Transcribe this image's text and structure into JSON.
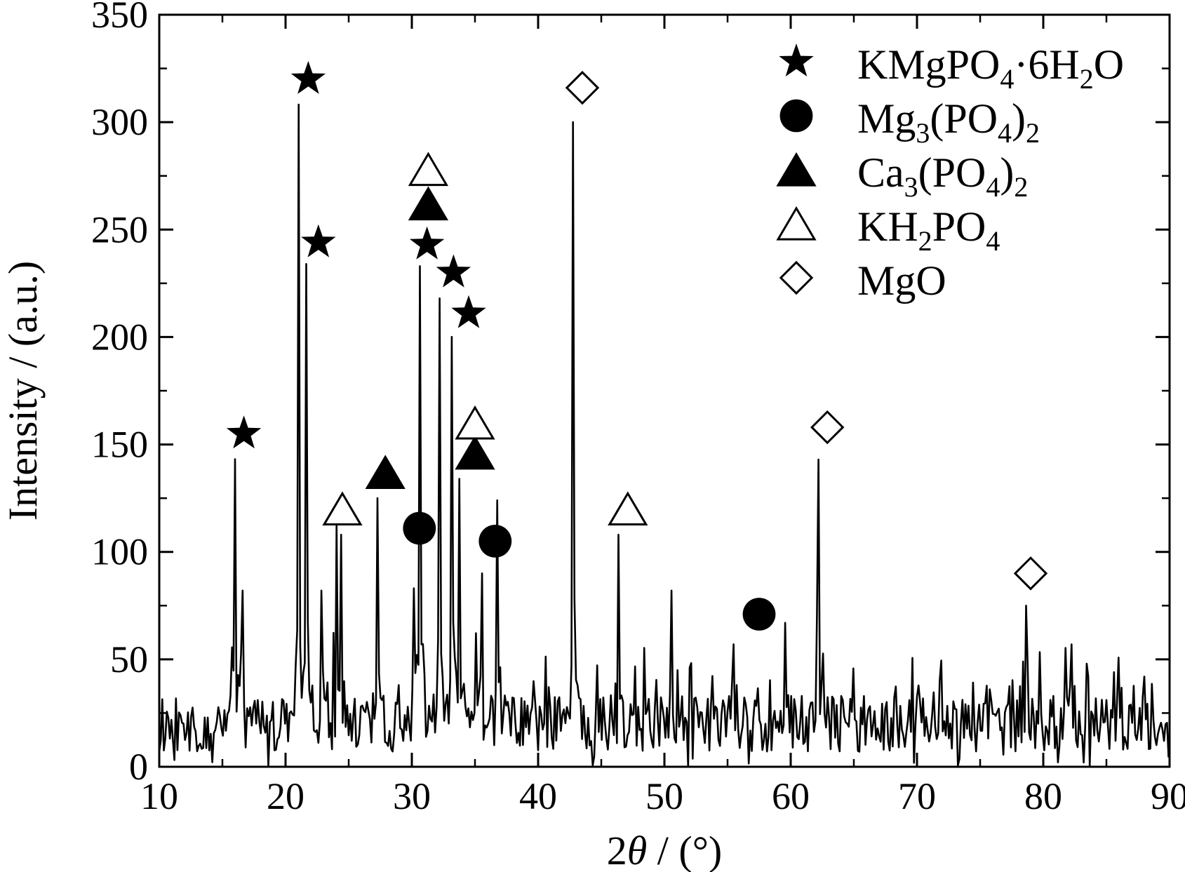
{
  "chart_data": {
    "type": "line",
    "xlabel_prefix": "2",
    "xlabel_theta": "θ",
    "xlabel_suffix": " / (°)",
    "ylabel": "Intensity / (a.u.)",
    "xlim": [
      10,
      90
    ],
    "ylim": [
      0,
      350
    ],
    "xticks": [
      10,
      20,
      30,
      40,
      50,
      60,
      70,
      80,
      90
    ],
    "yticks": [
      0,
      50,
      100,
      150,
      200,
      250,
      300,
      350
    ],
    "grid": false,
    "legend_position": "top-right",
    "legend": [
      {
        "symbol": "filled-star",
        "parts": [
          {
            "t": "KMgPO"
          },
          {
            "t": "4",
            "sub": true
          },
          {
            "t": "·6H"
          },
          {
            "t": "2",
            "sub": true
          },
          {
            "t": "O"
          }
        ]
      },
      {
        "symbol": "filled-circle",
        "parts": [
          {
            "t": "Mg"
          },
          {
            "t": "3",
            "sub": true
          },
          {
            "t": "(PO"
          },
          {
            "t": "4",
            "sub": true
          },
          {
            "t": ")"
          },
          {
            "t": "2",
            "sub": true
          }
        ]
      },
      {
        "symbol": "filled-triangle",
        "parts": [
          {
            "t": "Ca"
          },
          {
            "t": "3",
            "sub": true
          },
          {
            "t": "(PO"
          },
          {
            "t": "4",
            "sub": true
          },
          {
            "t": ")"
          },
          {
            "t": "2",
            "sub": true
          }
        ]
      },
      {
        "symbol": "open-triangle",
        "parts": [
          {
            "t": "KH"
          },
          {
            "t": "2",
            "sub": true
          },
          {
            "t": "PO"
          },
          {
            "t": "4",
            "sub": true
          }
        ]
      },
      {
        "symbol": "open-diamond",
        "parts": [
          {
            "t": "MgO"
          }
        ]
      }
    ],
    "peaks": [
      {
        "x": 16.0,
        "y": 143
      },
      {
        "x": 16.6,
        "y": 82
      },
      {
        "x": 21.0,
        "y": 308
      },
      {
        "x": 21.7,
        "y": 234
      },
      {
        "x": 22.9,
        "y": 82
      },
      {
        "x": 24.1,
        "y": 108
      },
      {
        "x": 24.4,
        "y": 108
      },
      {
        "x": 27.3,
        "y": 125
      },
      {
        "x": 30.2,
        "y": 82
      },
      {
        "x": 30.7,
        "y": 233
      },
      {
        "x": 32.2,
        "y": 218
      },
      {
        "x": 33.2,
        "y": 200
      },
      {
        "x": 33.8,
        "y": 134
      },
      {
        "x": 35.6,
        "y": 90
      },
      {
        "x": 36.8,
        "y": 124
      },
      {
        "x": 42.8,
        "y": 300
      },
      {
        "x": 46.4,
        "y": 108
      },
      {
        "x": 50.6,
        "y": 82
      },
      {
        "x": 55.5,
        "y": 57
      },
      {
        "x": 59.6,
        "y": 67
      },
      {
        "x": 62.2,
        "y": 143
      },
      {
        "x": 78.6,
        "y": 75
      },
      {
        "x": 82.3,
        "y": 57
      },
      {
        "x": 88.0,
        "y": 42
      }
    ],
    "background_level": 20,
    "phase_markers": [
      {
        "phase": "KMgPO4·6H2O",
        "symbol": "filled-star",
        "points": [
          [
            16.7,
            155
          ],
          [
            21.8,
            320
          ],
          [
            22.6,
            244
          ],
          [
            31.2,
            243
          ],
          [
            33.3,
            230
          ],
          [
            34.5,
            211
          ]
        ]
      },
      {
        "phase": "Mg3(PO4)2",
        "symbol": "filled-circle",
        "points": [
          [
            30.6,
            111
          ],
          [
            36.6,
            105
          ],
          [
            57.5,
            71
          ]
        ]
      },
      {
        "phase": "Ca3(PO4)2",
        "symbol": "filled-triangle",
        "points": [
          [
            27.9,
            137
          ],
          [
            31.3,
            262
          ],
          [
            35.0,
            146
          ]
        ]
      },
      {
        "phase": "KH2PO4",
        "symbol": "open-triangle",
        "points": [
          [
            24.5,
            120
          ],
          [
            31.3,
            278
          ],
          [
            35.0,
            160
          ],
          [
            47.1,
            120
          ]
        ]
      },
      {
        "phase": "MgO",
        "symbol": "open-diamond",
        "points": [
          [
            43.5,
            316
          ],
          [
            62.9,
            158
          ],
          [
            79.0,
            90
          ]
        ]
      }
    ]
  }
}
